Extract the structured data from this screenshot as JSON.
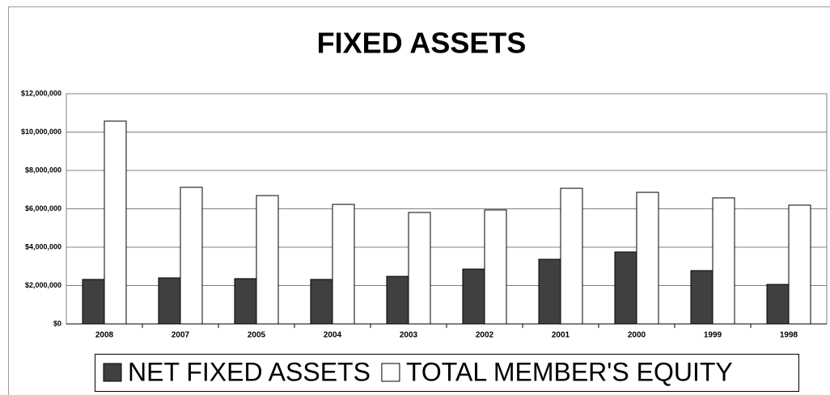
{
  "chart_data": {
    "type": "bar",
    "title": "FIXED ASSETS",
    "categories": [
      "2008",
      "2007",
      "2005",
      "2004",
      "2003",
      "2002",
      "2001",
      "2000",
      "1999",
      "1998"
    ],
    "series": [
      {
        "name": "NET FIXED ASSETS",
        "color": "#404040",
        "values": [
          2320000,
          2400000,
          2360000,
          2320000,
          2480000,
          2860000,
          3370000,
          3750000,
          2780000,
          2060000
        ]
      },
      {
        "name": "TOTAL MEMBER'S EQUITY",
        "color": "#ffffff",
        "values": [
          10570000,
          7120000,
          6690000,
          6230000,
          5810000,
          5940000,
          7070000,
          6860000,
          6570000,
          6190000
        ]
      }
    ],
    "ylim": [
      0,
      12000000
    ],
    "yticks": [
      {
        "value": 0,
        "label": "$0"
      },
      {
        "value": 2000000,
        "label": "$2,000,000"
      },
      {
        "value": 4000000,
        "label": "$4,000,000"
      },
      {
        "value": 6000000,
        "label": "$6,000,000"
      },
      {
        "value": 8000000,
        "label": "$8,000,000"
      },
      {
        "value": 10000000,
        "label": "$10,000,000"
      },
      {
        "value": 12000000,
        "label": "$12,000,000"
      }
    ],
    "grid": true,
    "legend": "bottom"
  }
}
